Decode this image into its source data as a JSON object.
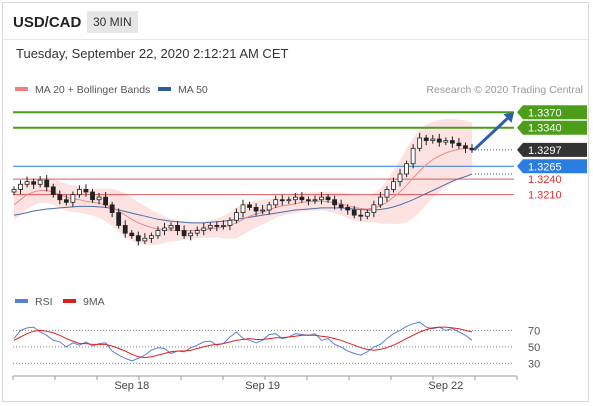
{
  "header": {
    "symbol": "USD/CAD",
    "timeframe": "30 MIN",
    "timestamp": "Tuesday, September 22, 2020 2:12:21 AM CET"
  },
  "legend": {
    "items": [
      {
        "label": "MA 20 + Bollinger Bands",
        "color": "#f08080"
      },
      {
        "label": "MA 50",
        "color": "#2e5c9a"
      }
    ],
    "credit": "Research © 2020 Trading Central"
  },
  "chart_data": [
    {
      "type": "candlestick",
      "panel": "price",
      "x_tick_labels": [
        "Sep 18",
        "Sep 19",
        "Sep 22"
      ],
      "ylim": [
        1.304,
        1.339
      ],
      "current_price": {
        "label": "1.3297",
        "value": 1.3297,
        "color": "#333333"
      },
      "levels": [
        {
          "label": "1.3370",
          "value": 1.337,
          "kind": "resistance",
          "color": "#4c9e1a"
        },
        {
          "label": "1.3340",
          "value": 1.334,
          "kind": "resistance",
          "color": "#4c9e1a"
        },
        {
          "label": "1.3265",
          "value": 1.3265,
          "kind": "pivot",
          "color": "#2a7de1"
        },
        {
          "label": "1.3240",
          "value": 1.324,
          "kind": "support",
          "color": "#e03030"
        },
        {
          "label": "1.3210",
          "value": 1.321,
          "kind": "support",
          "color": "#e03030"
        }
      ],
      "close": [
        1.322,
        1.323,
        1.3235,
        1.323,
        1.3238,
        1.3225,
        1.321,
        1.32,
        1.3195,
        1.321,
        1.322,
        1.3215,
        1.32,
        1.3205,
        1.319,
        1.3175,
        1.315,
        1.3135,
        1.313,
        1.312,
        1.3125,
        1.313,
        1.314,
        1.3145,
        1.315,
        1.314,
        1.313,
        1.3135,
        1.314,
        1.3145,
        1.315,
        1.3148,
        1.315,
        1.316,
        1.3175,
        1.319,
        1.3185,
        1.3178,
        1.318,
        1.319,
        1.32,
        1.3198,
        1.32,
        1.3205,
        1.32,
        1.3198,
        1.32,
        1.3205,
        1.32,
        1.319,
        1.3185,
        1.318,
        1.317,
        1.3168,
        1.3175,
        1.319,
        1.3205,
        1.322,
        1.3235,
        1.325,
        1.327,
        1.33,
        1.332,
        1.3315,
        1.3318,
        1.3312,
        1.3315,
        1.331,
        1.3305,
        1.33,
        1.3297
      ],
      "ma20": [
        1.319,
        1.32,
        1.321,
        1.3215,
        1.3218,
        1.3218,
        1.3215,
        1.321,
        1.3205,
        1.3202,
        1.32,
        1.3197,
        1.3195,
        1.3193,
        1.319,
        1.3185,
        1.3178,
        1.317,
        1.3162,
        1.3155,
        1.315,
        1.3146,
        1.3143,
        1.3142,
        1.3141,
        1.314,
        1.314,
        1.314,
        1.3141,
        1.3142,
        1.3143,
        1.3145,
        1.3147,
        1.315,
        1.3155,
        1.3162,
        1.3168,
        1.3172,
        1.3176,
        1.318,
        1.3185,
        1.3188,
        1.319,
        1.3192,
        1.3195,
        1.3196,
        1.3197,
        1.3197,
        1.3196,
        1.3194,
        1.3192,
        1.3188,
        1.3185,
        1.3183,
        1.3182,
        1.3184,
        1.3188,
        1.3195,
        1.3205,
        1.3215,
        1.3228,
        1.3242,
        1.3256,
        1.3268,
        1.3278,
        1.3285,
        1.3291,
        1.3295,
        1.3298,
        1.33,
        1.33
      ],
      "ma50": [
        1.317,
        1.3172,
        1.3175,
        1.3178,
        1.318,
        1.3182,
        1.3183,
        1.3184,
        1.3185,
        1.3186,
        1.3187,
        1.3187,
        1.3187,
        1.3186,
        1.3185,
        1.3183,
        1.318,
        1.3177,
        1.3174,
        1.3171,
        1.3168,
        1.3165,
        1.3162,
        1.316,
        1.3158,
        1.3157,
        1.3156,
        1.3155,
        1.3155,
        1.3155,
        1.3156,
        1.3157,
        1.3158,
        1.316,
        1.3162,
        1.3164,
        1.3166,
        1.3168,
        1.317,
        1.3172,
        1.3174,
        1.3176,
        1.3178,
        1.318,
        1.3181,
        1.3182,
        1.3183,
        1.3184,
        1.3184,
        1.3184,
        1.3184,
        1.3183,
        1.3182,
        1.3181,
        1.318,
        1.318,
        1.3181,
        1.3183,
        1.3186,
        1.319,
        1.3195,
        1.32,
        1.3206,
        1.3212,
        1.3218,
        1.3224,
        1.323,
        1.3236,
        1.3241,
        1.3245,
        1.325
      ],
      "bollinger_width": [
        0.003,
        0.003,
        0.0028,
        0.0026,
        0.0024,
        0.0024,
        0.0025,
        0.0026,
        0.0026,
        0.0026,
        0.0025,
        0.0025,
        0.0026,
        0.0028,
        0.0032,
        0.0036,
        0.004,
        0.0042,
        0.0042,
        0.004,
        0.0038,
        0.0034,
        0.003,
        0.0026,
        0.0022,
        0.002,
        0.0018,
        0.0017,
        0.0016,
        0.0016,
        0.0017,
        0.0018,
        0.0022,
        0.0026,
        0.003,
        0.003,
        0.0028,
        0.0026,
        0.0024,
        0.0022,
        0.002,
        0.0019,
        0.0018,
        0.0018,
        0.0018,
        0.0018,
        0.0018,
        0.0018,
        0.0019,
        0.002,
        0.0022,
        0.0024,
        0.0026,
        0.0026,
        0.0026,
        0.0028,
        0.0034,
        0.0042,
        0.0052,
        0.0062,
        0.0072,
        0.0078,
        0.008,
        0.0078,
        0.0074,
        0.007,
        0.0066,
        0.0062,
        0.0058,
        0.0054,
        0.005
      ],
      "forecast": {
        "from": 1.3297,
        "to": 1.337,
        "color": "#2d5fa8"
      }
    },
    {
      "type": "line",
      "panel": "rsi",
      "legend": [
        {
          "label": "RSI",
          "color": "#5a7fd6"
        },
        {
          "label": "9MA",
          "color": "#e02020"
        }
      ],
      "y_tick_labels": [
        "70",
        "50",
        "30"
      ],
      "y_ticks": [
        70,
        50,
        30
      ],
      "ylim": [
        22,
        85
      ],
      "rsi": [
        60,
        70,
        73,
        74,
        68,
        64,
        58,
        56,
        50,
        55,
        52,
        56,
        51,
        54,
        55,
        45,
        40,
        36,
        33,
        36,
        40,
        46,
        49,
        48,
        42,
        45,
        44,
        49,
        52,
        56,
        57,
        52,
        54,
        62,
        68,
        60,
        58,
        55,
        58,
        65,
        66,
        60,
        62,
        66,
        65,
        64,
        66,
        58,
        60,
        53,
        50,
        45,
        42,
        40,
        44,
        50,
        53,
        60,
        66,
        70,
        75,
        78,
        80,
        74,
        72,
        74,
        70,
        72,
        68,
        64,
        58
      ],
      "rsi_ma": [
        58,
        62,
        66,
        69,
        70,
        69,
        67,
        64,
        60,
        57,
        54,
        54,
        53,
        53,
        53,
        51,
        48,
        45,
        41,
        38,
        37,
        38,
        40,
        42,
        44,
        45,
        45,
        46,
        48,
        50,
        52,
        53,
        54,
        56,
        58,
        59,
        60,
        59,
        59,
        60,
        61,
        61,
        62,
        63,
        64,
        64,
        64,
        63,
        62,
        60,
        58,
        55,
        52,
        49,
        47,
        46,
        47,
        49,
        52,
        56,
        60,
        64,
        68,
        71,
        73,
        74,
        74,
        73,
        72,
        70,
        68
      ]
    }
  ]
}
